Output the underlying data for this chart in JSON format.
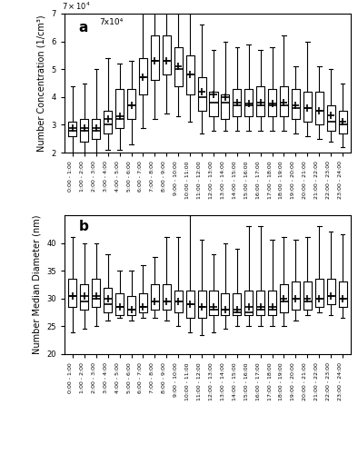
{
  "labels": [
    "0:00 - 1:00",
    "1:00 - 2:00",
    "2:00 - 3:00",
    "3:00 - 4:00",
    "4:00 - 5:00",
    "5:00 - 6:00",
    "6:00 - 7:00",
    "7:00 - 8:00",
    "8:00 - 9:00",
    "9:00 - 10:00",
    "10:00 - 11:00",
    "11:00 - 12:00",
    "12:00 - 13:00",
    "13:00 - 14:00",
    "14:00 - 15:00",
    "15:00 - 16:00",
    "16:00 - 17:00",
    "17:00 - 18:00",
    "18:00 - 19:00",
    "19:00 - 20:00",
    "20:00 - 21:00",
    "21:00 - 22:00",
    "22:00 - 23:00",
    "23:00 - 24:00"
  ],
  "conc": {
    "p5": [
      1.9,
      1.8,
      1.9,
      2.1,
      2.1,
      2.3,
      2.9,
      3.2,
      3.4,
      3.3,
      3.1,
      2.7,
      2.8,
      2.8,
      2.8,
      2.8,
      2.8,
      2.8,
      2.8,
      2.7,
      2.6,
      2.5,
      2.4,
      2.2
    ],
    "p25": [
      2.6,
      2.4,
      2.5,
      2.7,
      2.9,
      3.2,
      4.1,
      4.6,
      4.8,
      4.4,
      4.1,
      3.5,
      3.3,
      3.2,
      3.3,
      3.3,
      3.3,
      3.3,
      3.3,
      3.2,
      3.1,
      3.0,
      2.8,
      2.7
    ],
    "p50": [
      2.8,
      2.8,
      2.8,
      3.0,
      3.2,
      3.7,
      4.7,
      5.3,
      5.3,
      5.0,
      4.8,
      4.0,
      3.8,
      3.8,
      3.7,
      3.7,
      3.7,
      3.7,
      3.7,
      3.6,
      3.6,
      3.5,
      3.1,
      3.0
    ],
    "p75": [
      3.1,
      3.2,
      3.2,
      3.5,
      4.3,
      4.3,
      5.4,
      6.2,
      6.2,
      5.8,
      5.5,
      4.7,
      4.2,
      4.1,
      4.3,
      4.3,
      4.4,
      4.3,
      4.4,
      4.3,
      4.2,
      4.2,
      3.7,
      3.5
    ],
    "p95": [
      4.4,
      4.5,
      5.0,
      5.4,
      5.2,
      5.3,
      7.0,
      7.5,
      7.5,
      7.0,
      7.0,
      6.6,
      5.7,
      6.0,
      5.8,
      5.9,
      5.7,
      5.8,
      6.2,
      5.1,
      6.0,
      5.1,
      5.0,
      4.5
    ],
    "mean": [
      2.9,
      2.9,
      2.9,
      3.2,
      3.3,
      3.7,
      4.7,
      5.3,
      5.3,
      5.1,
      4.8,
      4.2,
      4.1,
      4.0,
      3.8,
      3.75,
      3.8,
      3.75,
      3.8,
      3.7,
      3.6,
      3.5,
      3.35,
      3.1
    ]
  },
  "diam": {
    "p5": [
      24.0,
      24.5,
      25.0,
      26.0,
      26.5,
      26.0,
      26.5,
      26.5,
      26.0,
      25.0,
      24.0,
      23.5,
      24.0,
      24.5,
      25.0,
      25.0,
      25.0,
      25.0,
      25.0,
      26.0,
      27.0,
      27.5,
      27.0,
      26.5
    ],
    "p25": [
      28.5,
      28.0,
      28.5,
      27.5,
      27.0,
      27.0,
      27.5,
      28.0,
      28.0,
      27.5,
      26.5,
      26.5,
      27.0,
      27.0,
      27.0,
      27.0,
      27.0,
      27.0,
      27.5,
      28.0,
      28.0,
      28.5,
      29.0,
      28.5
    ],
    "p50": [
      30.5,
      29.5,
      30.0,
      29.0,
      28.5,
      28.0,
      28.5,
      29.5,
      29.5,
      29.5,
      29.0,
      28.5,
      28.0,
      28.0,
      27.5,
      27.5,
      28.0,
      28.0,
      29.5,
      30.0,
      29.5,
      30.0,
      30.5,
      30.0
    ],
    "p75": [
      33.5,
      32.5,
      33.5,
      32.0,
      31.0,
      30.5,
      31.0,
      32.5,
      32.5,
      31.5,
      31.5,
      31.5,
      31.5,
      31.0,
      31.0,
      31.5,
      31.5,
      31.5,
      32.5,
      33.0,
      33.0,
      33.5,
      33.5,
      33.0
    ],
    "p95": [
      41.0,
      40.0,
      40.0,
      38.0,
      35.0,
      35.0,
      36.0,
      37.5,
      41.0,
      41.0,
      45.0,
      40.5,
      38.0,
      40.0,
      39.0,
      43.0,
      43.0,
      40.5,
      41.0,
      40.5,
      41.0,
      43.0,
      42.0,
      41.5
    ],
    "mean": [
      30.5,
      30.5,
      30.5,
      30.0,
      28.5,
      28.0,
      28.5,
      29.5,
      29.5,
      29.5,
      29.0,
      28.5,
      28.5,
      28.0,
      28.0,
      28.5,
      28.5,
      28.5,
      30.0,
      30.0,
      30.0,
      30.0,
      30.5,
      30.0
    ]
  },
  "conc_ylim": [
    2.0,
    7.0
  ],
  "diam_ylim": [
    20,
    45
  ],
  "scale_factor": 10000
}
